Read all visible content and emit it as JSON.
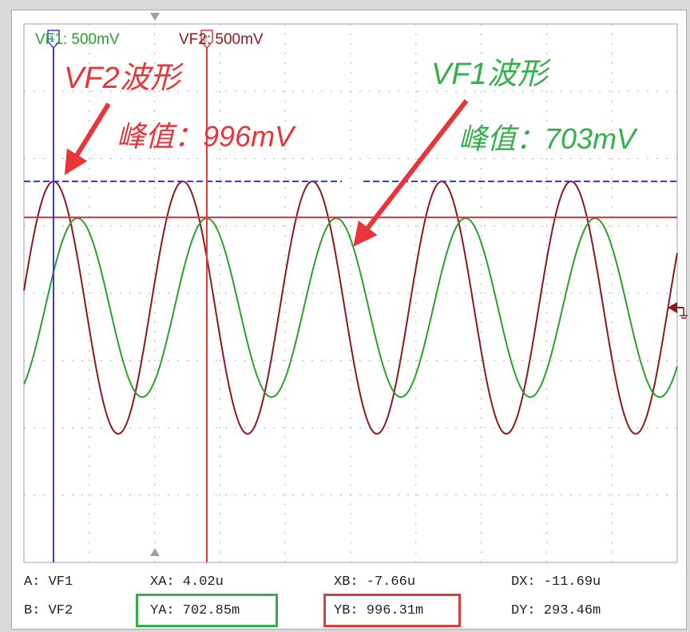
{
  "channels": {
    "ch1": {
      "label": "VF1: 500mV",
      "color": "#2ca02c"
    },
    "ch2": {
      "label": "VF2: 500mV",
      "color": "#8b1a1a"
    }
  },
  "annotations": {
    "vf2_title": "VF2波形",
    "vf2_peak": "峰值：996mV",
    "vf1_title": "VF1波形",
    "vf1_peak": "峰值：703mV"
  },
  "readouts": {
    "a": "A: VF1",
    "b": "B: VF2",
    "xa": "XA: 4.02u",
    "ya": "YA: 702.85m",
    "xb": "XB: -7.66u",
    "yb": "YB: 996.31m",
    "dx": "DX: -11.69u",
    "dy": "DY: 293.46m"
  },
  "colors": {
    "cursor_a": "#3a3ad6",
    "cursor_b": "#e23a3a",
    "annotation_red": "#e8343a",
    "annotation_green": "#33b04a",
    "grid": "#b0b0b0"
  }
}
